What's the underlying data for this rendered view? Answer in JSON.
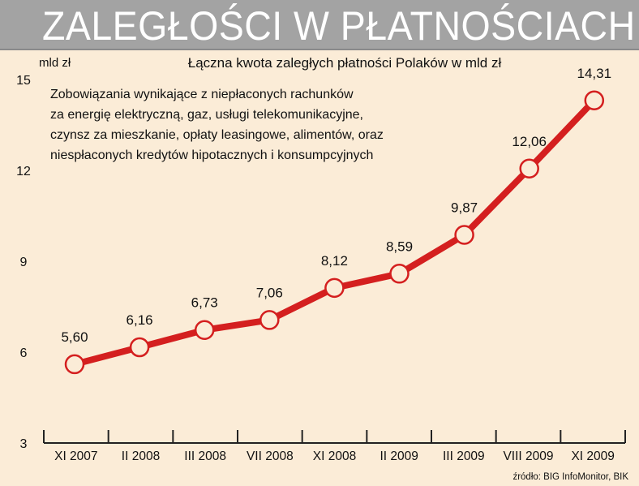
{
  "header": {
    "title": "ZALEGŁOŚCI W PŁATNOŚCIACH"
  },
  "colors": {
    "header_band": "#a3a3a3",
    "background": "#fbecd7",
    "line": "#d41f1f",
    "marker_fill": "#fbecd7",
    "text": "#111111"
  },
  "chart_data": {
    "type": "line",
    "title": "Łączna kwota zaległych płatności Polaków w mld zł",
    "ylabel": "mld zł",
    "xlabel": "",
    "ylim": [
      3,
      15
    ],
    "yticks": [
      "3",
      "6",
      "9",
      "12",
      "15"
    ],
    "grid": false,
    "categories": [
      "XI 2007",
      "II 2008",
      "III 2008",
      "VII 2008",
      "XI 2008",
      "II 2009",
      "III 2009",
      "VIII 2009",
      "XI 2009"
    ],
    "values": [
      5.6,
      6.16,
      6.73,
      7.06,
      8.12,
      8.59,
      9.87,
      12.06,
      14.31
    ],
    "data_labels": [
      "5,60",
      "6,16",
      "6,73",
      "7,06",
      "8,12",
      "8,59",
      "9,87",
      "12,06",
      "14,31"
    ],
    "annotation": [
      "Zobowiązania wynikające z niepłaconych rachunków",
      "za energię elektryczną, gaz, usługi telekomunikacyjne,",
      "czynsz za mieszkanie, opłaty leasingowe, alimentów, oraz",
      "niespłaconych kredytów hipotacznych i konsumpcyjnych"
    ],
    "source": "źródło: BIG InfoMonitor, BIK"
  }
}
